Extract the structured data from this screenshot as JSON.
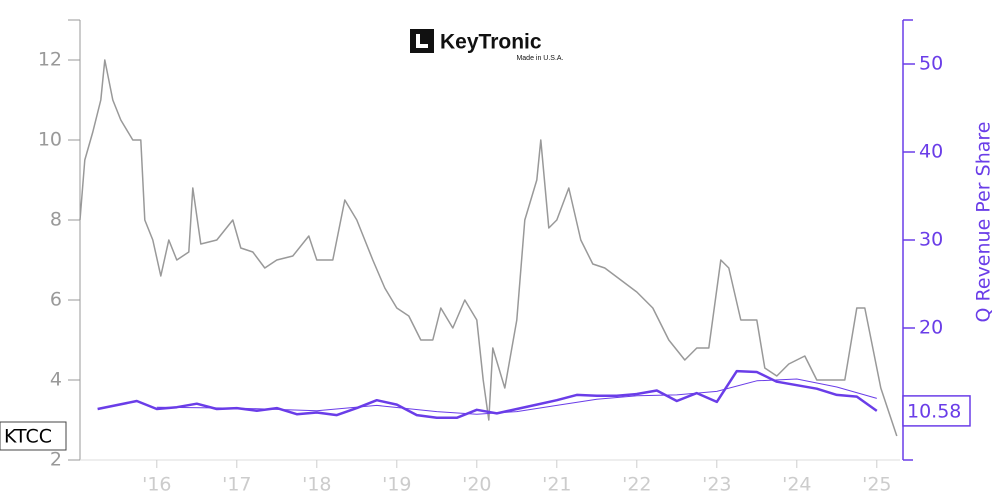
{
  "logo": {
    "name": "KeyTronic",
    "tagline": "Made in U.S.A."
  },
  "chart_data": {
    "type": "line",
    "y2_label": "Q Revenue Per Share",
    "xlim": [
      2015.04,
      2025.29
    ],
    "xticks": [
      {
        "value": 2016,
        "label": "'16"
      },
      {
        "value": 2017,
        "label": "'17"
      },
      {
        "value": 2018,
        "label": "'18"
      },
      {
        "value": 2019,
        "label": "'19"
      },
      {
        "value": 2020,
        "label": "'20"
      },
      {
        "value": 2021,
        "label": "'21"
      },
      {
        "value": 2022,
        "label": "'22"
      },
      {
        "value": 2023,
        "label": "'23"
      },
      {
        "value": 2024,
        "label": "'24"
      },
      {
        "value": 2025,
        "label": "'25"
      }
    ],
    "ylim": [
      2,
      13
    ],
    "yticks": [
      2,
      4,
      6,
      8,
      10,
      12
    ],
    "y2lim": [
      5,
      55
    ],
    "y2ticks": [
      20,
      30,
      40,
      50
    ],
    "series": [
      {
        "name": "KTCC",
        "color": "#999999",
        "width": 1.5,
        "x": [
          2015.04,
          2015.1,
          2015.2,
          2015.3,
          2015.35,
          2015.45,
          2015.55,
          2015.7,
          2015.8,
          2015.85,
          2015.95,
          2016.05,
          2016.15,
          2016.25,
          2016.4,
          2016.45,
          2016.55,
          2016.75,
          2016.95,
          2017.05,
          2017.2,
          2017.35,
          2017.5,
          2017.7,
          2017.9,
          2018.0,
          2018.2,
          2018.35,
          2018.5,
          2018.7,
          2018.85,
          2019.0,
          2019.15,
          2019.3,
          2019.45,
          2019.55,
          2019.7,
          2019.85,
          2020.0,
          2020.08,
          2020.15,
          2020.2,
          2020.35,
          2020.5,
          2020.6,
          2020.75,
          2020.8,
          2020.9,
          2021.0,
          2021.15,
          2021.3,
          2021.45,
          2021.6,
          2021.8,
          2022.0,
          2022.2,
          2022.4,
          2022.6,
          2022.75,
          2022.9,
          2023.05,
          2023.15,
          2023.3,
          2023.5,
          2023.6,
          2023.75,
          2023.9,
          2024.1,
          2024.25,
          2024.45,
          2024.6,
          2024.75,
          2024.85,
          2024.95,
          2025.05,
          2025.25
        ],
        "values": [
          8,
          9.5,
          10.2,
          11.0,
          12.0,
          11.0,
          10.5,
          10.0,
          10.0,
          8.0,
          7.5,
          6.6,
          7.5,
          7.0,
          7.2,
          8.8,
          7.4,
          7.5,
          8.0,
          7.3,
          7.2,
          6.8,
          7.0,
          7.1,
          7.6,
          7.0,
          7.0,
          8.5,
          8.0,
          7.0,
          6.3,
          5.8,
          5.6,
          5.0,
          5.0,
          5.8,
          5.3,
          6.0,
          5.5,
          4.0,
          3.0,
          4.8,
          3.8,
          5.5,
          8.0,
          9.0,
          10.0,
          7.8,
          8.0,
          8.8,
          7.5,
          6.9,
          6.8,
          6.5,
          6.2,
          5.8,
          5.0,
          4.5,
          4.8,
          4.8,
          7.0,
          6.8,
          5.5,
          5.5,
          4.3,
          4.1,
          4.4,
          4.6,
          4.0,
          4.0,
          4.0,
          5.8,
          5.8,
          4.8,
          3.8,
          2.6
        ]
      },
      {
        "name": "Q Revenue Per Share",
        "color": "#6a3de8",
        "width": 2.5,
        "axis": "y2",
        "x": [
          2015.26,
          2015.75,
          2016.0,
          2016.25,
          2016.5,
          2016.75,
          2017.0,
          2017.25,
          2017.5,
          2017.75,
          2018.0,
          2018.25,
          2018.5,
          2018.75,
          2019.0,
          2019.25,
          2019.5,
          2019.75,
          2020.0,
          2020.25,
          2020.5,
          2020.75,
          2021.0,
          2021.25,
          2021.5,
          2021.75,
          2022.0,
          2022.25,
          2022.5,
          2022.75,
          2023.0,
          2023.25,
          2023.5,
          2023.75,
          2024.0,
          2024.25,
          2024.5,
          2024.75,
          2025.0
        ],
        "values": [
          10.8,
          11.7,
          10.8,
          11.0,
          11.4,
          10.8,
          10.9,
          10.6,
          10.9,
          10.2,
          10.4,
          10.1,
          10.9,
          11.8,
          11.3,
          10.1,
          9.8,
          9.8,
          10.7,
          10.3,
          10.8,
          11.3,
          11.8,
          12.4,
          12.3,
          12.3,
          12.5,
          12.9,
          11.7,
          12.6,
          11.6,
          15.1,
          15.0,
          13.9,
          13.5,
          13.1,
          12.4,
          12.2,
          10.58
        ]
      },
      {
        "color": "#6a3de8",
        "width": 1,
        "axis": "y2",
        "x": [
          2016.0,
          2017.0,
          2018.0,
          2018.75,
          2019.5,
          2020.0,
          2020.5,
          2021.0,
          2021.5,
          2022.0,
          2022.5,
          2023.0,
          2023.5,
          2024.0,
          2024.5,
          2025.0
        ],
        "values": [
          11.0,
          10.9,
          10.6,
          11.2,
          10.5,
          10.2,
          10.5,
          11.2,
          11.9,
          12.3,
          12.4,
          12.8,
          14.0,
          14.2,
          13.3,
          12.0
        ]
      }
    ]
  }
}
